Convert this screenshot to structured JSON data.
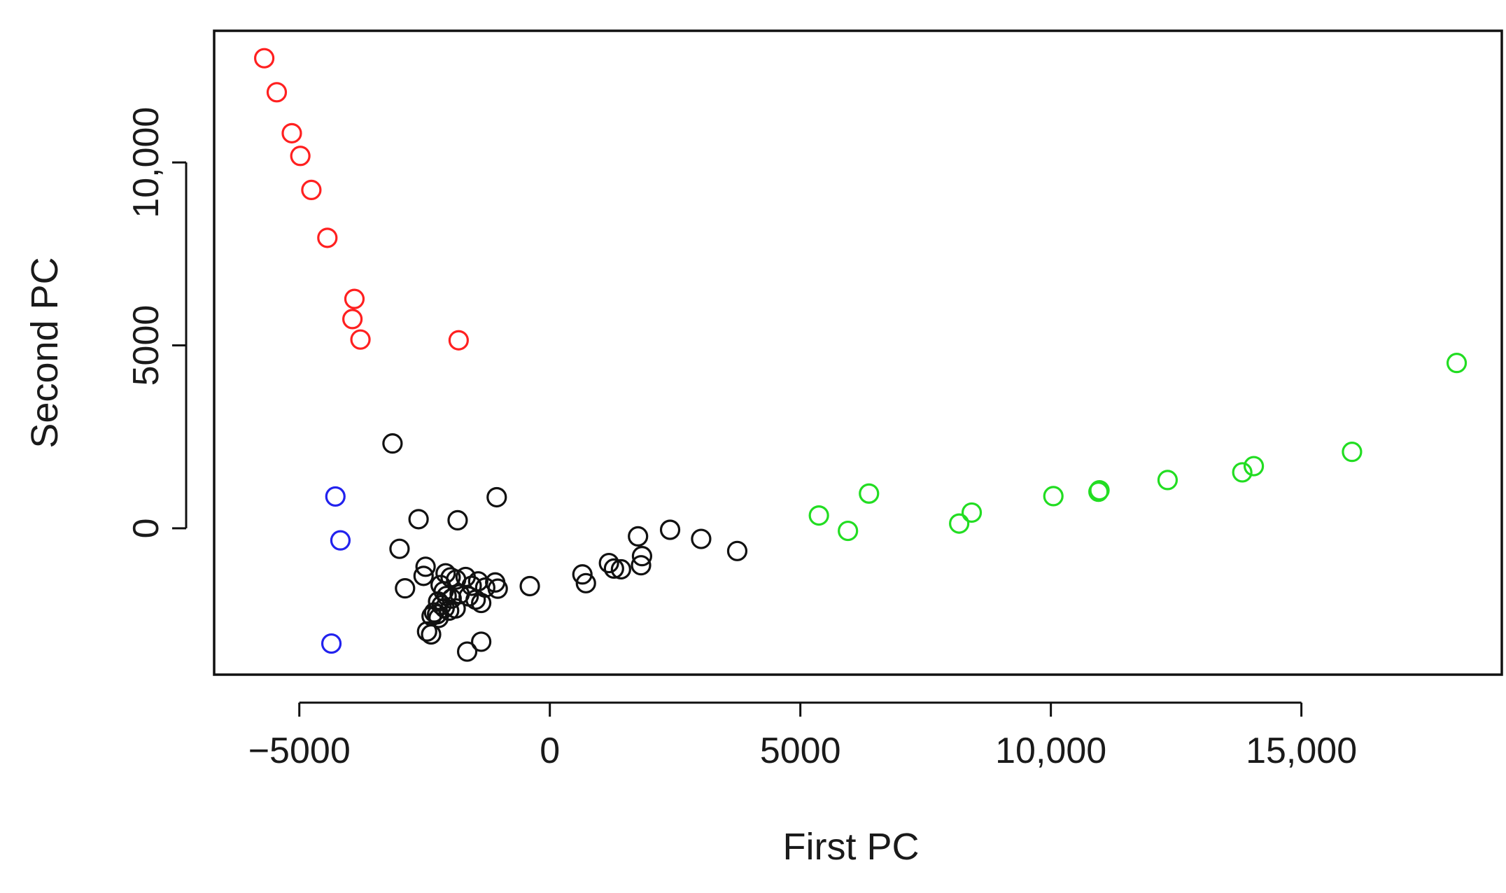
{
  "chart_data": {
    "type": "scatter",
    "title": "",
    "xlabel": "First PC",
    "ylabel": "Second PC",
    "xlim": [
      -6700,
      19000
    ],
    "ylim": [
      -4000,
      13600
    ],
    "grid": false,
    "legend": "none",
    "x_ticks": [
      {
        "value": -5000,
        "label": "−5000"
      },
      {
        "value": 0,
        "label": "0"
      },
      {
        "value": 5000,
        "label": "5000"
      },
      {
        "value": 10000,
        "label": "10,000"
      },
      {
        "value": 15000,
        "label": "15,000"
      }
    ],
    "y_ticks": [
      {
        "value": 0,
        "label": "0"
      },
      {
        "value": 5000,
        "label": "5000"
      },
      {
        "value": 10000,
        "label": "10,000"
      }
    ],
    "series": [
      {
        "color": "#ff2020",
        "x": [
          -5700,
          -5450,
          -5150,
          -4980,
          -4760,
          -4440,
          -3900,
          -3940,
          -3780,
          -1820
        ],
        "y": [
          12850,
          11920,
          10800,
          10180,
          9250,
          7940,
          6270,
          5720,
          5160,
          5140
        ]
      },
      {
        "color": "#2222ee",
        "x": [
          -4280,
          -4180,
          -4360
        ],
        "y": [
          870,
          -330,
          -3150
        ]
      },
      {
        "color": "#111111",
        "x": [
          -3140,
          -2620,
          -1840,
          -1060,
          -3000,
          -2520,
          -2480,
          -2890,
          -2080,
          -1980,
          -1870,
          -1680,
          -1560,
          -1430,
          -1290,
          -1090,
          -1040,
          -2180,
          -2120,
          -2060,
          -1960,
          -1800,
          -1620,
          -1480,
          -1370,
          -2230,
          -2160,
          -2100,
          -2010,
          -1880,
          -2360,
          -2310,
          -2250,
          -2220,
          -2450,
          -2370,
          -1650,
          -1370,
          -400,
          650,
          720,
          1180,
          1280,
          1420,
          1760,
          1840,
          1820,
          2400,
          3020,
          3740
        ],
        "y": [
          2320,
          250,
          220,
          850,
          -560,
          -1300,
          -1050,
          -1640,
          -1230,
          -1340,
          -1400,
          -1330,
          -1570,
          -1450,
          -1620,
          -1480,
          -1650,
          -1550,
          -1720,
          -1850,
          -1920,
          -1800,
          -1860,
          -1950,
          -2040,
          -2000,
          -2100,
          -2180,
          -2250,
          -2190,
          -2400,
          -2300,
          -2350,
          -2450,
          -2820,
          -2900,
          -3370,
          -3100,
          -1580,
          -1260,
          -1500,
          -950,
          -1100,
          -1120,
          -220,
          -760,
          -1010,
          -40,
          -290,
          -620
        ]
      },
      {
        "color": "#22dd22",
        "x": [
          5370,
          5950,
          6370,
          8170,
          8420,
          10050,
          10950,
          10970,
          12330,
          13820,
          14050,
          16010,
          18100
        ],
        "y": [
          350,
          -70,
          950,
          130,
          430,
          880,
          1000,
          1040,
          1320,
          1530,
          1700,
          2090,
          4520
        ]
      }
    ]
  }
}
